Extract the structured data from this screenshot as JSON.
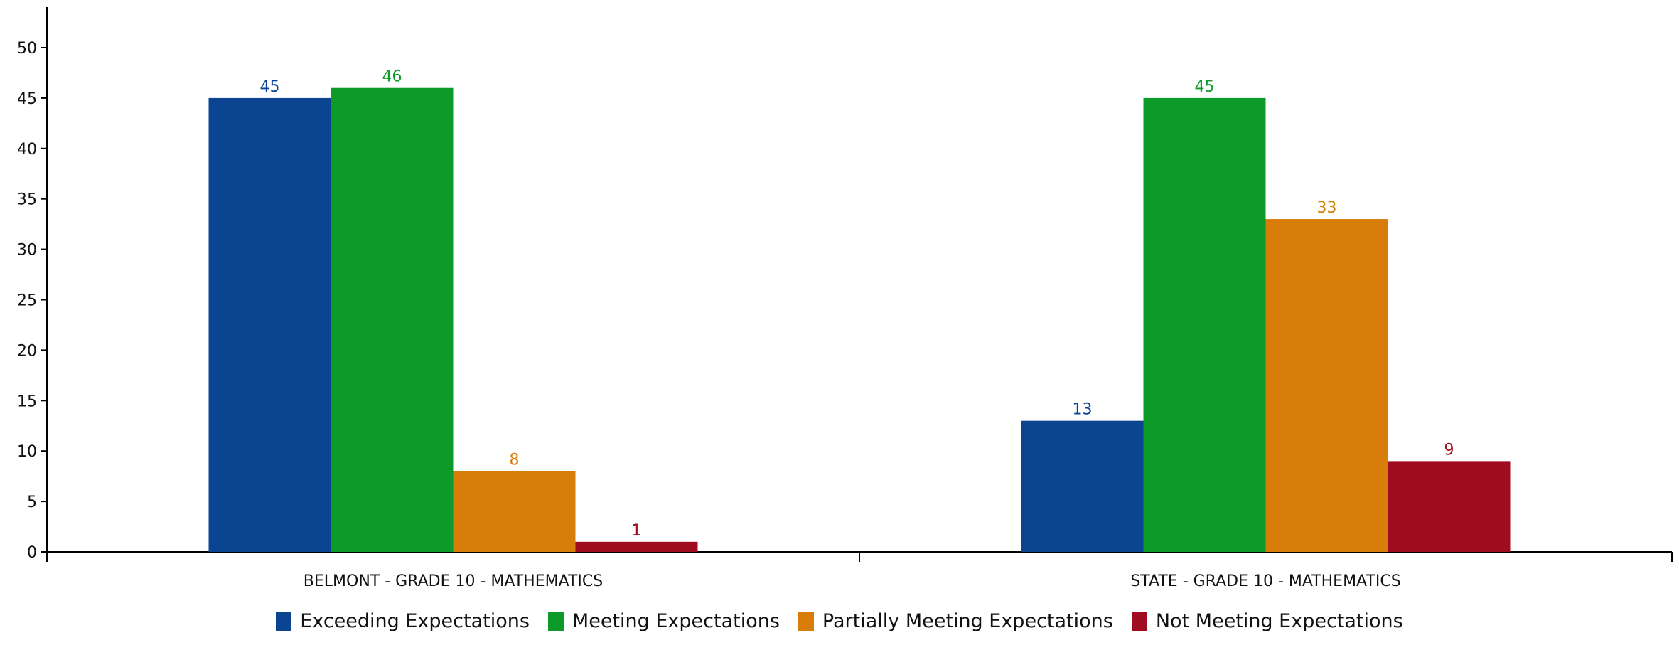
{
  "chart_data": {
    "type": "bar",
    "title": "",
    "xlabel": "",
    "ylabel": "",
    "categories": [
      "BELMONT - GRADE 10 - MATHEMATICS",
      "STATE - GRADE 10 - MATHEMATICS"
    ],
    "series": [
      {
        "name": "Exceeding Expectations",
        "color": "#0b4592",
        "values": [
          45,
          13
        ]
      },
      {
        "name": "Meeting Expectations",
        "color": "#0c9a28",
        "values": [
          46,
          45
        ]
      },
      {
        "name": "Partially Meeting Expectations",
        "color": "#d97d0a",
        "values": [
          8,
          33
        ]
      },
      {
        "name": "Not Meeting Expectations",
        "color": "#a00c1f",
        "values": [
          1,
          9
        ]
      }
    ],
    "ylim": [
      0,
      50
    ],
    "yticks": [
      0,
      5,
      10,
      15,
      20,
      25,
      30,
      35,
      40,
      45,
      50
    ],
    "grid": false,
    "legend_position": "bottom",
    "data_labels": true
  }
}
